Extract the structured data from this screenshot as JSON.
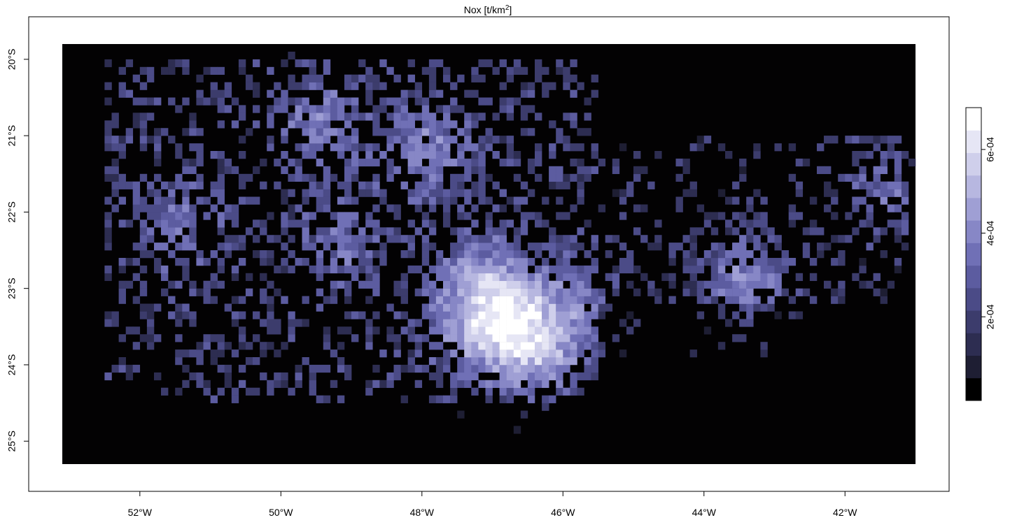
{
  "title": {
    "main": "Nox [t/km",
    "sup": "2",
    "tail": "]"
  },
  "map": {
    "x_range_deg": [
      -53.1,
      -41.0
    ],
    "y_range_deg": [
      -25.3,
      -19.8
    ],
    "resolution_deg": 0.1,
    "background_color": "#030203"
  },
  "axes": {
    "x_ticks": [
      {
        "value": -52,
        "label": "52°W"
      },
      {
        "value": -50,
        "label": "50°W"
      },
      {
        "value": -48,
        "label": "48°W"
      },
      {
        "value": -46,
        "label": "46°W"
      },
      {
        "value": -44,
        "label": "44°W"
      },
      {
        "value": -42,
        "label": "42°W"
      }
    ],
    "y_ticks": [
      {
        "value": -20,
        "label": "20°S"
      },
      {
        "value": -21,
        "label": "21°S"
      },
      {
        "value": -22,
        "label": "22°S"
      },
      {
        "value": -23,
        "label": "23°S"
      },
      {
        "value": -24,
        "label": "24°S"
      },
      {
        "value": -25,
        "label": "25°S"
      }
    ]
  },
  "legend": {
    "range": [
      0,
      0.0007
    ],
    "colors": [
      "#000000",
      "#1e1e33",
      "#2d2d51",
      "#3c3c6c",
      "#4b4b87",
      "#5c5ca0",
      "#7070b6",
      "#8787c6",
      "#9f9fd4",
      "#b7b7e0",
      "#cfcfeb",
      "#e6e6f5",
      "#ffffff"
    ],
    "ticks": [
      {
        "value": 0.0002,
        "label": "2e-04"
      },
      {
        "value": 0.0004,
        "label": "4e-04"
      },
      {
        "value": 0.0006,
        "label": "6e-04"
      }
    ]
  },
  "hotspots": [
    {
      "lon": -46.7,
      "lat": -23.55,
      "weight": 1.0
    },
    {
      "lon": -47.1,
      "lat": -22.9,
      "weight": 0.85
    },
    {
      "lon": -47.9,
      "lat": -21.2,
      "weight": 0.7
    },
    {
      "lon": -49.4,
      "lat": -20.8,
      "weight": 0.6
    },
    {
      "lon": -43.4,
      "lat": -22.9,
      "weight": 0.8
    },
    {
      "lon": -41.4,
      "lat": -21.75,
      "weight": 0.55
    },
    {
      "lon": -51.4,
      "lat": -22.15,
      "weight": 0.55
    },
    {
      "lon": -49.1,
      "lat": -22.35,
      "weight": 0.5
    },
    {
      "lon": -47.3,
      "lat": -23.5,
      "weight": 0.6
    },
    {
      "lon": -45.9,
      "lat": -23.2,
      "weight": 0.55
    },
    {
      "lon": -46.3,
      "lat": -23.9,
      "weight": 0.6
    }
  ]
}
